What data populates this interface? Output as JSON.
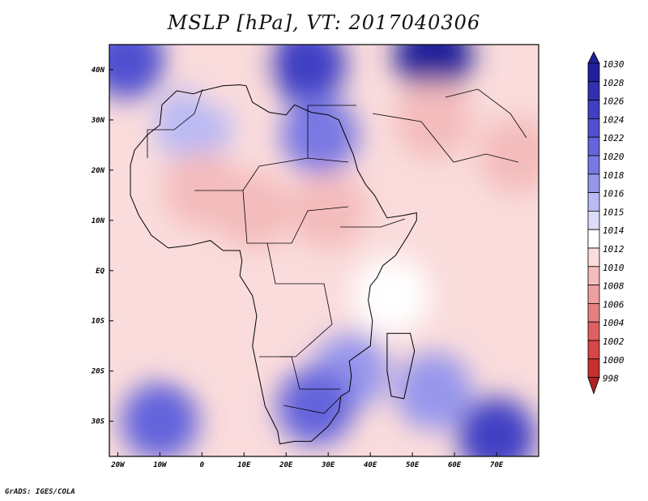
{
  "title": "MSLP [hPa], VT: 2017040306",
  "credit": "GrADS: IGES/COLA",
  "map": {
    "lon_range": [
      -22,
      80
    ],
    "lat_range": [
      -37,
      45
    ],
    "lat_labels": [
      {
        "lat": 40,
        "label": "40N"
      },
      {
        "lat": 30,
        "label": "30N"
      },
      {
        "lat": 20,
        "label": "20N"
      },
      {
        "lat": 10,
        "label": "10N"
      },
      {
        "lat": 0,
        "label": "EQ"
      },
      {
        "lat": -10,
        "label": "10S"
      },
      {
        "lat": -20,
        "label": "20S"
      },
      {
        "lat": -30,
        "label": "30S"
      }
    ],
    "lon_labels": [
      {
        "lon": -20,
        "label": "20W"
      },
      {
        "lon": -10,
        "label": "10W"
      },
      {
        "lon": 0,
        "label": "0"
      },
      {
        "lon": 10,
        "label": "10E"
      },
      {
        "lon": 20,
        "label": "20E"
      },
      {
        "lon": 30,
        "label": "30E"
      },
      {
        "lon": 40,
        "label": "40E"
      },
      {
        "lon": 50,
        "label": "50E"
      },
      {
        "lon": 60,
        "label": "60E"
      },
      {
        "lon": 70,
        "label": "70E"
      }
    ]
  },
  "colorbar": {
    "levels": [
      "1030",
      "1028",
      "1026",
      "1024",
      "1022",
      "1020",
      "1018",
      "1016",
      "1015",
      "1014",
      "1012",
      "1010",
      "1008",
      "1006",
      "1004",
      "1002",
      "1000",
      "998"
    ],
    "colors": [
      "#20209a",
      "#3030b0",
      "#4040c4",
      "#5050d0",
      "#6464dc",
      "#7878e4",
      "#9696ec",
      "#babaf4",
      "#dcdcfa",
      "#ffffff",
      "#fadcdc",
      "#f4bcbc",
      "#eea0a0",
      "#e68080",
      "#de6060",
      "#d64646",
      "#c83030",
      "#b02020"
    ]
  },
  "pressure_cells": [
    {
      "lon": 25,
      "lat": 41,
      "value": 1026
    },
    {
      "lon": 55,
      "lat": 43,
      "value": 1030
    },
    {
      "lon": -18,
      "lat": 42,
      "value": 1024
    },
    {
      "lon": 28,
      "lat": 27,
      "value": 1020
    },
    {
      "lon": -2,
      "lat": 29,
      "value": 1016
    },
    {
      "lon": 6,
      "lat": 40,
      "value": 1012
    },
    {
      "lon": 55,
      "lat": 30,
      "value": 1010
    },
    {
      "lon": 75,
      "lat": 23,
      "value": 1010
    },
    {
      "lon": 0,
      "lat": 16,
      "value": 1010
    },
    {
      "lon": 30,
      "lat": 12,
      "value": 1010
    },
    {
      "lon": 12,
      "lat": 12,
      "value": 1011
    },
    {
      "lon": -20,
      "lat": 8,
      "value": 1012
    },
    {
      "lon": 60,
      "lat": 5,
      "value": 1013
    },
    {
      "lon": 25,
      "lat": -8,
      "value": 1012
    },
    {
      "lon": 35,
      "lat": -20,
      "value": 1018
    },
    {
      "lon": 27,
      "lat": -27,
      "value": 1022
    },
    {
      "lon": -10,
      "lat": -30,
      "value": 1022
    },
    {
      "lon": 70,
      "lat": -33,
      "value": 1026
    },
    {
      "lon": 55,
      "lat": -24,
      "value": 1018
    },
    {
      "lon": 0,
      "lat": -12,
      "value": 1012
    },
    {
      "lon": 45,
      "lat": -5,
      "value": 1014
    }
  ],
  "coastline": [
    [
      -17,
      21
    ],
    [
      -17,
      15
    ],
    [
      -15,
      11
    ],
    [
      -12,
      7
    ],
    [
      -8,
      4.5
    ],
    [
      -3,
      5
    ],
    [
      2,
      6
    ],
    [
      5,
      4
    ],
    [
      9,
      4
    ],
    [
      9.5,
      2
    ],
    [
      9,
      -1
    ],
    [
      12,
      -5
    ],
    [
      13,
      -9
    ],
    [
      12,
      -15
    ],
    [
      14,
      -23
    ],
    [
      15,
      -27
    ],
    [
      18,
      -32
    ],
    [
      18.5,
      -34.5
    ],
    [
      22,
      -34
    ],
    [
      26,
      -34
    ],
    [
      30,
      -31
    ],
    [
      32.5,
      -28
    ],
    [
      33,
      -25
    ],
    [
      35,
      -24
    ],
    [
      35.5,
      -21
    ],
    [
      35,
      -18
    ],
    [
      40,
      -15
    ],
    [
      40.5,
      -10
    ],
    [
      39.5,
      -6
    ],
    [
      40,
      -3
    ],
    [
      41.5,
      -1.5
    ],
    [
      43,
      1
    ],
    [
      46,
      3
    ],
    [
      49,
      7
    ],
    [
      51,
      10
    ],
    [
      51,
      11.5
    ],
    [
      48,
      11
    ],
    [
      44,
      10.5
    ],
    [
      43,
      12
    ],
    [
      41,
      15
    ],
    [
      39,
      17
    ],
    [
      37,
      20
    ],
    [
      36,
      23
    ],
    [
      34,
      27
    ],
    [
      32.5,
      30
    ],
    [
      30,
      31
    ],
    [
      26,
      31.5
    ],
    [
      22,
      33
    ],
    [
      20,
      31
    ],
    [
      16,
      31.5
    ],
    [
      12,
      33.5
    ],
    [
      10.5,
      36.8
    ],
    [
      9,
      37
    ],
    [
      5,
      36.8
    ],
    [
      0,
      35.8
    ],
    [
      -2,
      35.2
    ],
    [
      -6,
      35.8
    ],
    [
      -9.5,
      33
    ],
    [
      -10,
      29
    ],
    [
      -13,
      27
    ],
    [
      -16,
      24
    ],
    [
      -17,
      21
    ]
  ]
}
